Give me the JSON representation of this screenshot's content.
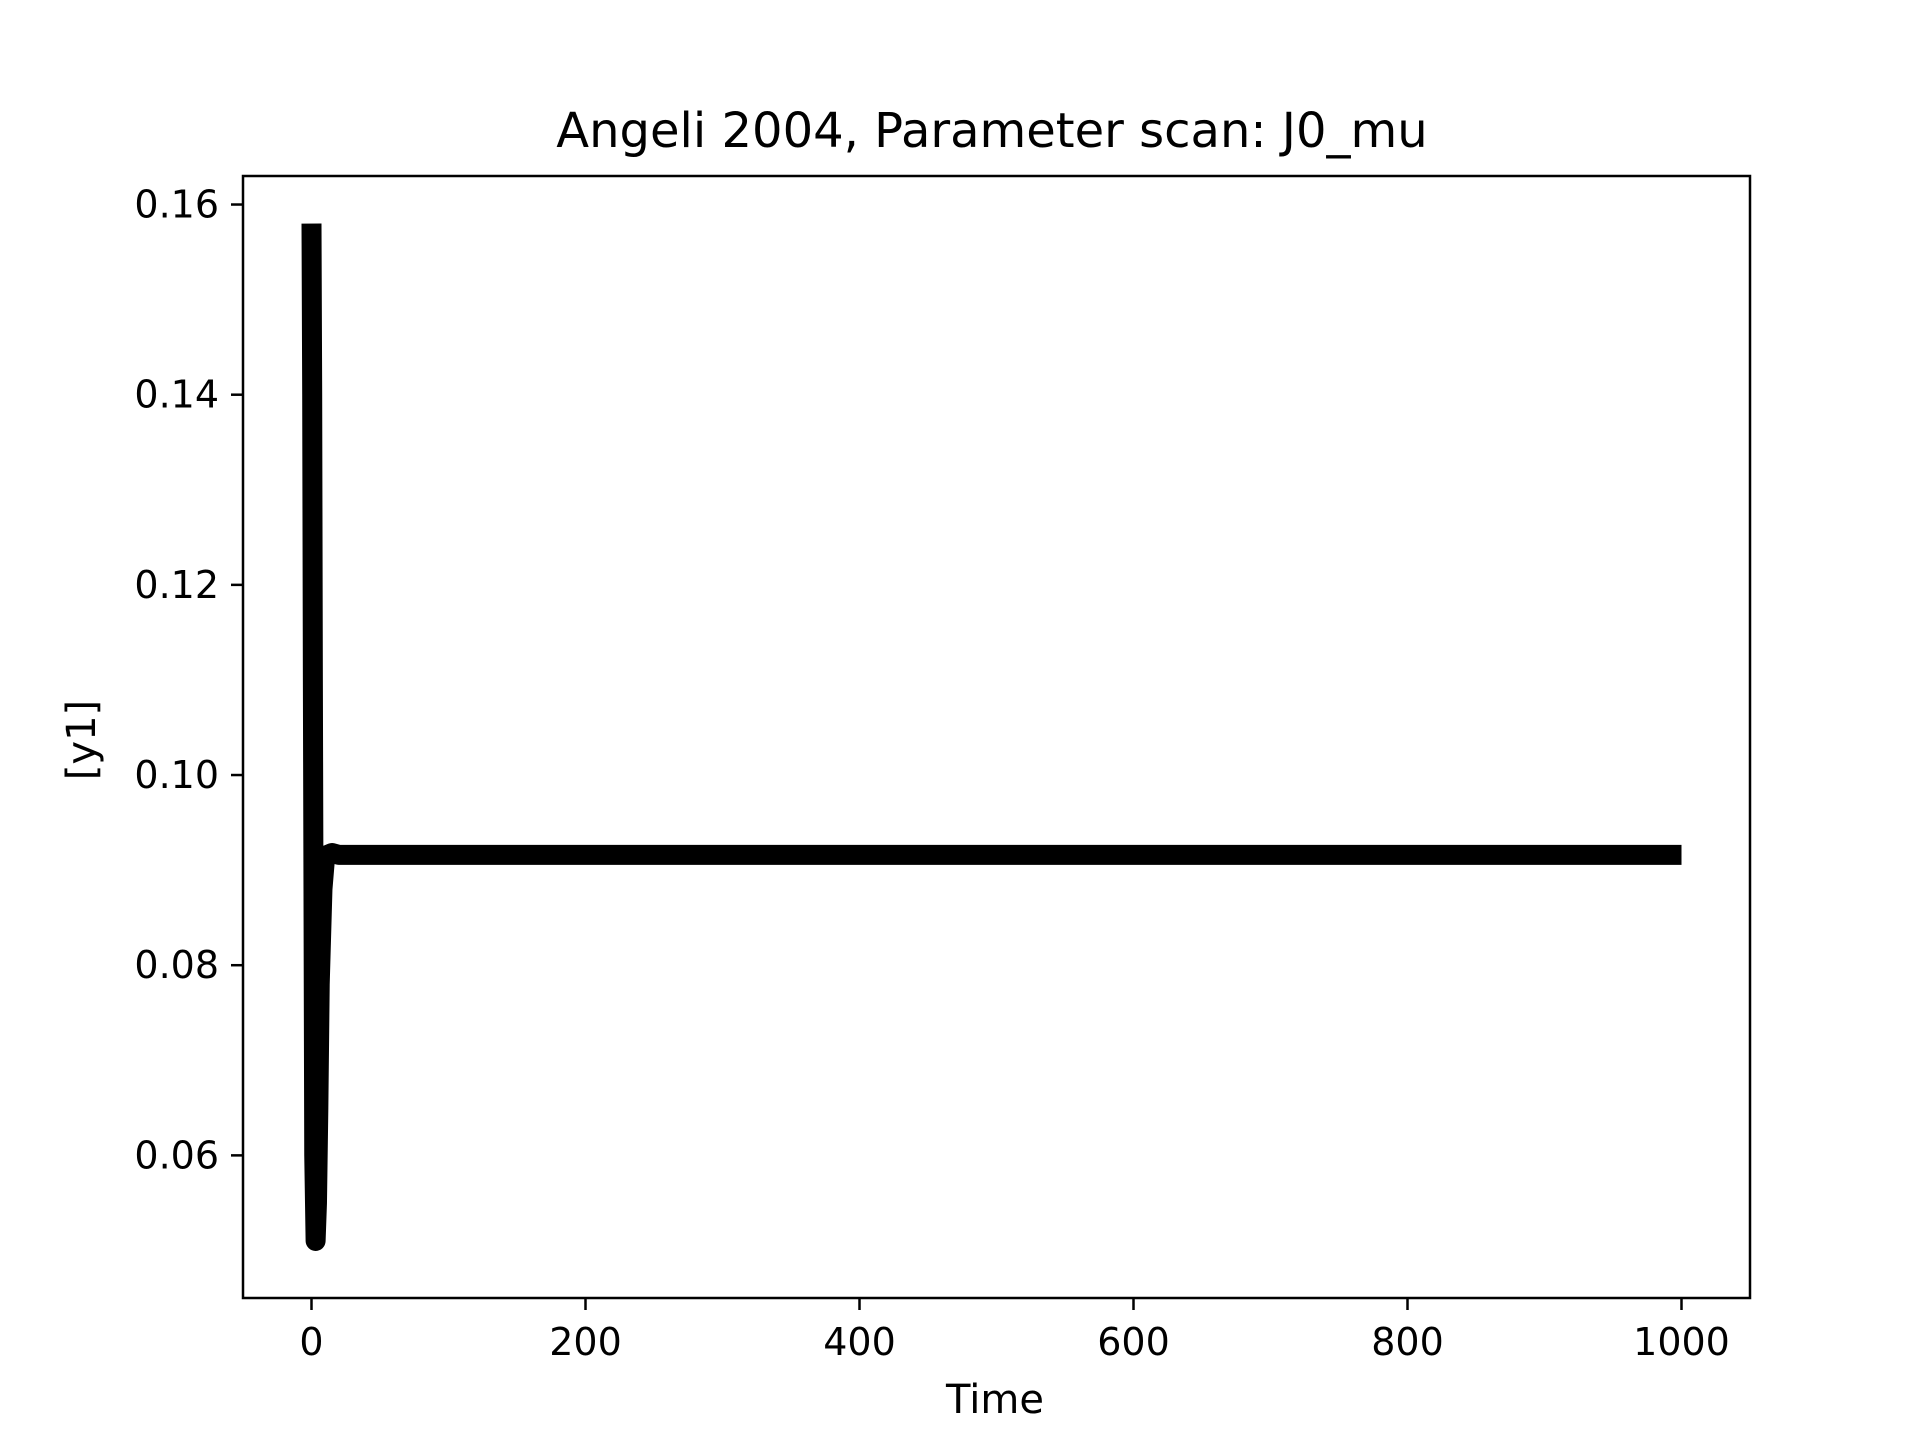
{
  "chart_data": {
    "type": "line",
    "title": "Angeli 2004, Parameter scan: J0_mu",
    "xlabel": "Time",
    "ylabel": "[y1]",
    "xlim": [
      -50,
      1050
    ],
    "ylim": [
      0.045,
      0.163
    ],
    "xticks": [
      0,
      200,
      400,
      600,
      800,
      1000
    ],
    "yticks": [
      0.06,
      0.08,
      0.1,
      0.12,
      0.14,
      0.16
    ],
    "xtick_labels": [
      "0",
      "200",
      "400",
      "600",
      "800",
      "1000"
    ],
    "ytick_labels": [
      "0.06",
      "0.08",
      "0.10",
      "0.12",
      "0.14",
      "0.16"
    ],
    "grid": false,
    "legend": "none",
    "series": [
      {
        "color": "#000000",
        "x": [
          0,
          0.5,
          1,
          1.5,
          2,
          3,
          4,
          5,
          6,
          8,
          10,
          15,
          20,
          50,
          100,
          200,
          400,
          600,
          800,
          1000
        ],
        "y": [
          0.158,
          0.14,
          0.11,
          0.085,
          0.06,
          0.051,
          0.055,
          0.065,
          0.078,
          0.088,
          0.0915,
          0.0918,
          0.0916,
          0.0916,
          0.0916,
          0.0916,
          0.0916,
          0.0916,
          0.0916,
          0.0916
        ]
      }
    ]
  }
}
